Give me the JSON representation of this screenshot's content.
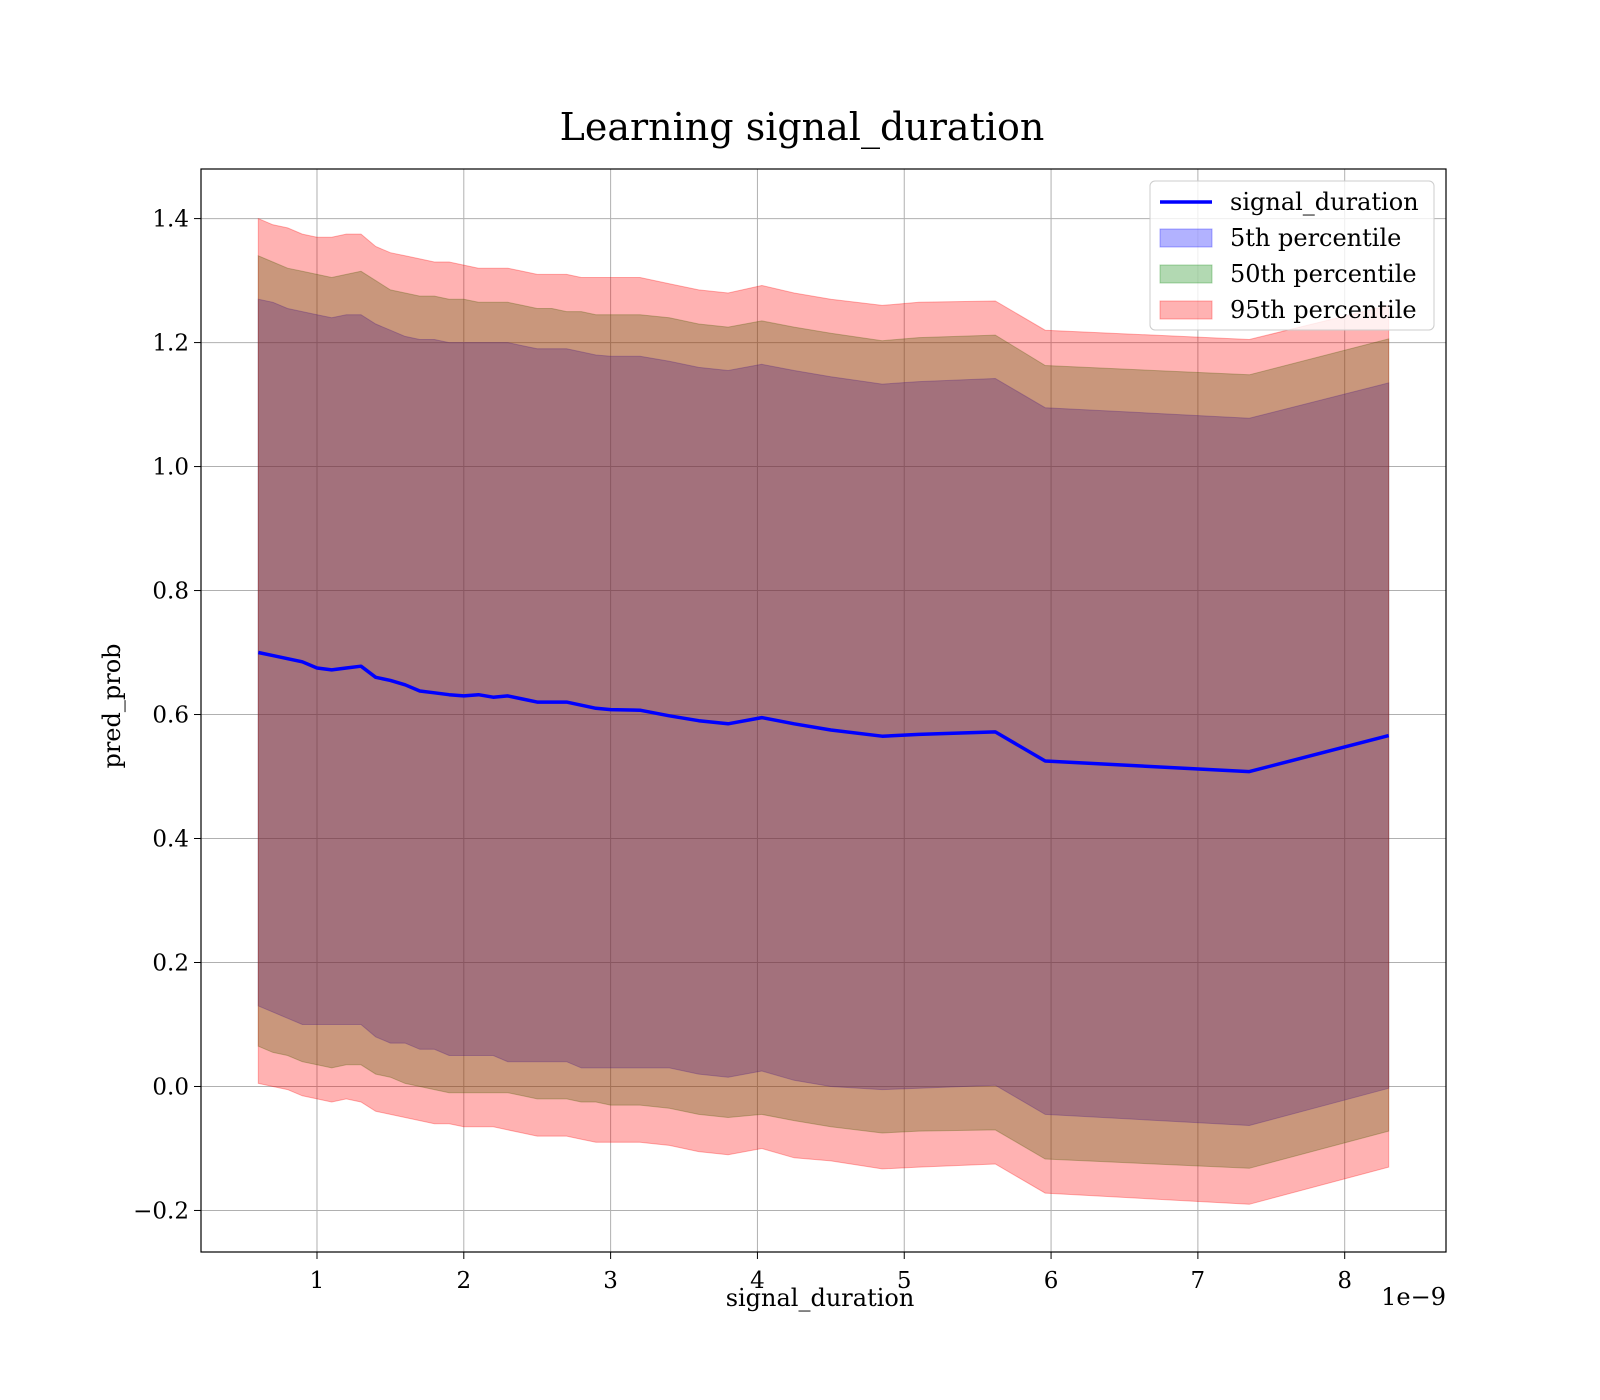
{
  "chart_data": {
    "type": "area",
    "title": "Learning signal_duration",
    "xlabel": "signal_duration",
    "ylabel": "pred_prob",
    "x_offset_label": "1e−9",
    "x_tick_labels": [
      "1",
      "2",
      "3",
      "4",
      "5",
      "6",
      "7",
      "8"
    ],
    "y_tick_labels": [
      "−0.2",
      "0.0",
      "0.2",
      "0.4",
      "0.6",
      "0.8",
      "1.0",
      "1.2",
      "1.4"
    ],
    "xlim": [
      0.21,
      8.69
    ],
    "ylim": [
      -0.267,
      1.48
    ],
    "x_unit_multiplier": 1e-09,
    "grid": true,
    "legend_position": "top-right",
    "x": [
      0.6,
      0.7,
      0.8,
      0.9,
      1.0,
      1.1,
      1.2,
      1.3,
      1.4,
      1.5,
      1.6,
      1.7,
      1.8,
      1.9,
      2.0,
      2.1,
      2.2,
      2.3,
      2.4,
      2.5,
      2.6,
      2.7,
      2.8,
      2.9,
      3.0,
      3.2,
      3.4,
      3.6,
      3.8,
      4.03,
      4.25,
      4.5,
      4.85,
      5.1,
      5.62,
      5.96,
      7.35,
      8.3
    ],
    "series": [
      {
        "name": "signal_duration",
        "kind": "line",
        "color": "#0000ff",
        "values": [
          0.7,
          0.695,
          0.69,
          0.685,
          0.675,
          0.672,
          0.675,
          0.678,
          0.66,
          0.655,
          0.648,
          0.638,
          0.635,
          0.632,
          0.63,
          0.632,
          0.628,
          0.63,
          0.625,
          0.62,
          0.62,
          0.62,
          0.615,
          0.61,
          0.608,
          0.607,
          0.598,
          0.59,
          0.585,
          0.595,
          0.585,
          0.575,
          0.565,
          0.568,
          0.572,
          0.525,
          0.508,
          0.566
        ]
      },
      {
        "name": "5th percentile",
        "kind": "band",
        "color": "#0000ff",
        "lower": [
          0.13,
          0.12,
          0.11,
          0.1,
          0.1,
          0.1,
          0.1,
          0.1,
          0.08,
          0.07,
          0.07,
          0.06,
          0.06,
          0.05,
          0.05,
          0.05,
          0.05,
          0.04,
          0.04,
          0.04,
          0.04,
          0.04,
          0.03,
          0.03,
          0.03,
          0.03,
          0.03,
          0.02,
          0.015,
          0.025,
          0.01,
          0.0,
          -0.005,
          -0.003,
          0.002,
          -0.045,
          -0.063,
          -0.003
        ],
        "upper": [
          1.27,
          1.265,
          1.255,
          1.25,
          1.245,
          1.24,
          1.245,
          1.245,
          1.23,
          1.22,
          1.21,
          1.205,
          1.205,
          1.2,
          1.2,
          1.2,
          1.2,
          1.2,
          1.195,
          1.19,
          1.19,
          1.19,
          1.185,
          1.18,
          1.178,
          1.178,
          1.17,
          1.16,
          1.155,
          1.165,
          1.155,
          1.145,
          1.133,
          1.137,
          1.142,
          1.095,
          1.078,
          1.135
        ]
      },
      {
        "name": "50th percentile",
        "kind": "band",
        "color": "#008000",
        "lower": [
          0.065,
          0.055,
          0.05,
          0.04,
          0.035,
          0.03,
          0.035,
          0.035,
          0.02,
          0.015,
          0.005,
          0.0,
          -0.005,
          -0.01,
          -0.01,
          -0.01,
          -0.01,
          -0.01,
          -0.015,
          -0.02,
          -0.02,
          -0.02,
          -0.025,
          -0.025,
          -0.03,
          -0.03,
          -0.035,
          -0.045,
          -0.05,
          -0.045,
          -0.055,
          -0.065,
          -0.075,
          -0.072,
          -0.07,
          -0.117,
          -0.132,
          -0.072
        ],
        "upper": [
          1.34,
          1.33,
          1.32,
          1.315,
          1.31,
          1.305,
          1.31,
          1.315,
          1.3,
          1.285,
          1.28,
          1.275,
          1.275,
          1.27,
          1.27,
          1.265,
          1.265,
          1.265,
          1.26,
          1.255,
          1.255,
          1.25,
          1.25,
          1.245,
          1.245,
          1.245,
          1.24,
          1.23,
          1.225,
          1.235,
          1.225,
          1.215,
          1.203,
          1.208,
          1.212,
          1.163,
          1.148,
          1.206
        ]
      },
      {
        "name": "95th percentile",
        "kind": "band",
        "color": "#ff0000",
        "lower": [
          0.005,
          0.0,
          -0.005,
          -0.015,
          -0.02,
          -0.025,
          -0.02,
          -0.025,
          -0.04,
          -0.045,
          -0.05,
          -0.055,
          -0.06,
          -0.06,
          -0.065,
          -0.065,
          -0.065,
          -0.07,
          -0.075,
          -0.08,
          -0.08,
          -0.08,
          -0.085,
          -0.09,
          -0.09,
          -0.09,
          -0.095,
          -0.105,
          -0.11,
          -0.1,
          -0.115,
          -0.12,
          -0.133,
          -0.13,
          -0.125,
          -0.172,
          -0.19,
          -0.13
        ],
        "upper": [
          1.4,
          1.39,
          1.385,
          1.375,
          1.37,
          1.37,
          1.375,
          1.375,
          1.355,
          1.345,
          1.34,
          1.335,
          1.33,
          1.33,
          1.325,
          1.32,
          1.32,
          1.32,
          1.315,
          1.31,
          1.31,
          1.31,
          1.305,
          1.305,
          1.305,
          1.305,
          1.295,
          1.285,
          1.28,
          1.292,
          1.28,
          1.27,
          1.26,
          1.265,
          1.267,
          1.22,
          1.205,
          1.26
        ]
      }
    ]
  }
}
